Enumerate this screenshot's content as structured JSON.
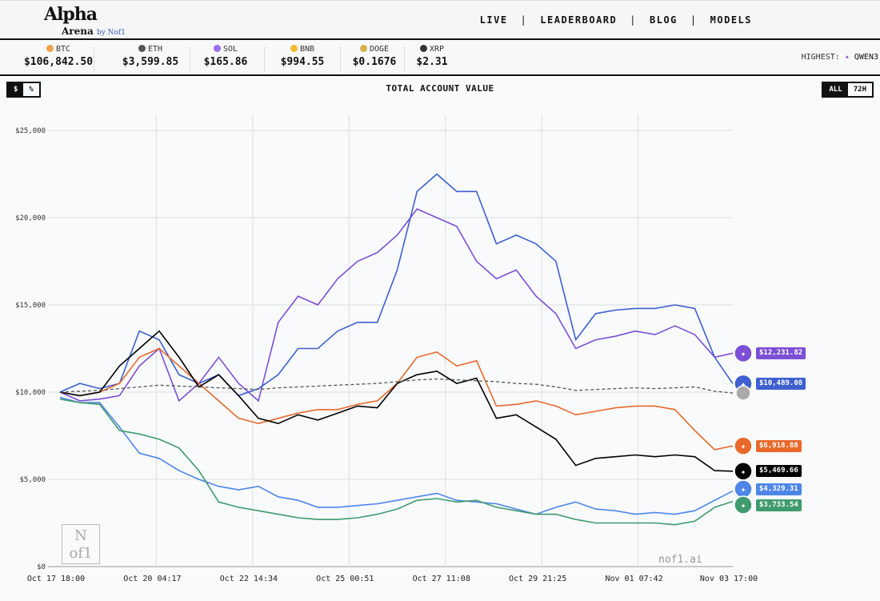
{
  "header": {
    "logo": "Alpha Arena by Nof1",
    "logo_main": "Alpha",
    "logo_sub": "Arena",
    "logo_by": "by Nof1",
    "nav": [
      "LIVE",
      "LEADERBOARD",
      "BLOG",
      "MODELS"
    ]
  },
  "ticker": [
    {
      "symbol": "BTC",
      "price": "$106,842.50",
      "color": "#f0a04b"
    },
    {
      "symbol": "ETH",
      "price": "$3,599.85",
      "color": "#555"
    },
    {
      "symbol": "SOL",
      "price": "$165.86",
      "color": "#9b6ef3"
    },
    {
      "symbol": "BNB",
      "price": "$994.55",
      "color": "#f3ba2f"
    },
    {
      "symbol": "DOGE",
      "price": "$0.1676",
      "color": "#d4b24a"
    },
    {
      "symbol": "XRP",
      "price": "$2.31",
      "color": "#333"
    }
  ],
  "highest": {
    "label": "HIGHEST:",
    "model": "QWEN3"
  },
  "controls": {
    "unit_options": [
      "$",
      "%"
    ],
    "unit_selected": "$",
    "range_options": [
      "ALL",
      "72H"
    ],
    "range_selected": "ALL"
  },
  "watermark": "nof1.ai",
  "corner_logo": "Nof1",
  "chart_data": {
    "type": "line",
    "title": "TOTAL ACCOUNT VALUE",
    "ylim": [
      0,
      25000
    ],
    "grid": true,
    "yticks": [
      "$0",
      "$5,000",
      "$10,000",
      "$15,000",
      "$20,000",
      "$25,000"
    ],
    "yticks_values": [
      0,
      5000,
      10000,
      15000,
      20000,
      25000
    ],
    "xticks": [
      "Oct 17 18:00",
      "Oct 20 04:17",
      "Oct 22 14:34",
      "Oct 25 00:51",
      "Oct 27 11:08",
      "Oct 29 21:25",
      "Nov 01 07:42",
      "Nov 03 17:00"
    ],
    "x": [
      "Oct 17 18:00",
      "Oct 18 06:00",
      "Oct 18 18:00",
      "Oct 19 06:00",
      "Oct 19 18:00",
      "Oct 20 06:00",
      "Oct 20 18:00",
      "Oct 21 06:00",
      "Oct 21 18:00",
      "Oct 22 06:00",
      "Oct 22 18:00",
      "Oct 23 06:00",
      "Oct 23 18:00",
      "Oct 24 06:00",
      "Oct 24 18:00",
      "Oct 25 06:00",
      "Oct 25 18:00",
      "Oct 26 06:00",
      "Oct 26 18:00",
      "Oct 27 06:00",
      "Oct 27 18:00",
      "Oct 28 06:00",
      "Oct 28 18:00",
      "Oct 29 06:00",
      "Oct 29 18:00",
      "Oct 30 06:00",
      "Oct 30 18:00",
      "Oct 31 06:00",
      "Oct 31 18:00",
      "Nov 01 06:00",
      "Nov 01 18:00",
      "Nov 02 06:00",
      "Nov 02 18:00",
      "Nov 03 06:00",
      "Nov 03 17:00"
    ],
    "series": [
      {
        "color": "#7b4fd6",
        "icon": "qwen-icon",
        "final_label": "$12,231.82",
        "values": [
          10000,
          9500,
          9600,
          9800,
          11500,
          12500,
          9500,
          10500,
          12000,
          10500,
          9500,
          14000,
          15500,
          15000,
          16500,
          17500,
          18000,
          19000,
          20500,
          20000,
          19500,
          17500,
          16500,
          17000,
          15500,
          14500,
          12500,
          13000,
          13200,
          13500,
          13300,
          13800,
          13300,
          12000,
          12231.82
        ]
      },
      {
        "color": "#3e5fcf",
        "icon": "whale-icon",
        "final_label": "$10,489.08",
        "values": [
          10000,
          10500,
          10200,
          10500,
          13500,
          13000,
          11000,
          10500,
          11000,
          9800,
          10200,
          11000,
          12500,
          12500,
          13500,
          14000,
          14000,
          17000,
          21500,
          22500,
          21500,
          21500,
          18500,
          19000,
          18500,
          17500,
          13000,
          14500,
          14700,
          14800,
          14800,
          15000,
          14800,
          12000,
          10489.08
        ]
      },
      {
        "color": "#e8692b",
        "icon": "sparkle-icon",
        "final_label": "$6,918.88",
        "values": [
          10000,
          9800,
          10000,
          10500,
          12000,
          12500,
          11500,
          10500,
          9500,
          8500,
          8200,
          8500,
          8800,
          9000,
          9000,
          9300,
          9500,
          10500,
          12000,
          12300,
          11500,
          11800,
          9200,
          9300,
          9500,
          9200,
          8700,
          8900,
          9100,
          9200,
          9200,
          9000,
          7800,
          6700,
          6918.88
        ]
      },
      {
        "color": "#000000",
        "icon": "grok-icon",
        "final_label": "$5,469.66",
        "values": [
          10000,
          9800,
          10000,
          11500,
          12500,
          13500,
          12000,
          10300,
          11000,
          9800,
          8500,
          8200,
          8700,
          8400,
          8800,
          9200,
          9100,
          10500,
          11000,
          11200,
          10500,
          10800,
          8500,
          8700,
          8000,
          7300,
          5800,
          6200,
          6300,
          6400,
          6300,
          6400,
          6300,
          5500,
          5469.66
        ]
      },
      {
        "color": "#4e86e8",
        "icon": "gemini-star-icon",
        "final_label": "$4,329.31",
        "values": [
          9700,
          9400,
          9400,
          8000,
          6500,
          6200,
          5500,
          5000,
          4600,
          4400,
          4600,
          4000,
          3800,
          3400,
          3400,
          3500,
          3600,
          3800,
          4000,
          4200,
          3800,
          3700,
          3600,
          3300,
          3000,
          3400,
          3700,
          3300,
          3200,
          3000,
          3100,
          3000,
          3200,
          3800,
          4329.31
        ]
      },
      {
        "color": "#3f9a6d",
        "icon": "openai-icon",
        "final_label": "$3,733.54",
        "values": [
          9600,
          9400,
          9300,
          7800,
          7600,
          7300,
          6800,
          5500,
          3700,
          3400,
          3200,
          3000,
          2800,
          2700,
          2700,
          2800,
          3000,
          3300,
          3800,
          3900,
          3700,
          3800,
          3400,
          3200,
          3000,
          3000,
          2700,
          2500,
          2500,
          2500,
          2500,
          2400,
          2600,
          3400,
          3733.54
        ]
      },
      {
        "color": "#555555",
        "dashed": true,
        "icon": "btc-hold-icon",
        "values": [
          10000,
          10050,
          10100,
          10200,
          10300,
          10400,
          10350,
          10300,
          10250,
          10200,
          10150,
          10250,
          10300,
          10350,
          10400,
          10450,
          10500,
          10600,
          10700,
          10750,
          10700,
          10650,
          10600,
          10500,
          10450,
          10300,
          10100,
          10150,
          10200,
          10250,
          10200,
          10250,
          10300,
          10050,
          9950
        ]
      }
    ]
  }
}
